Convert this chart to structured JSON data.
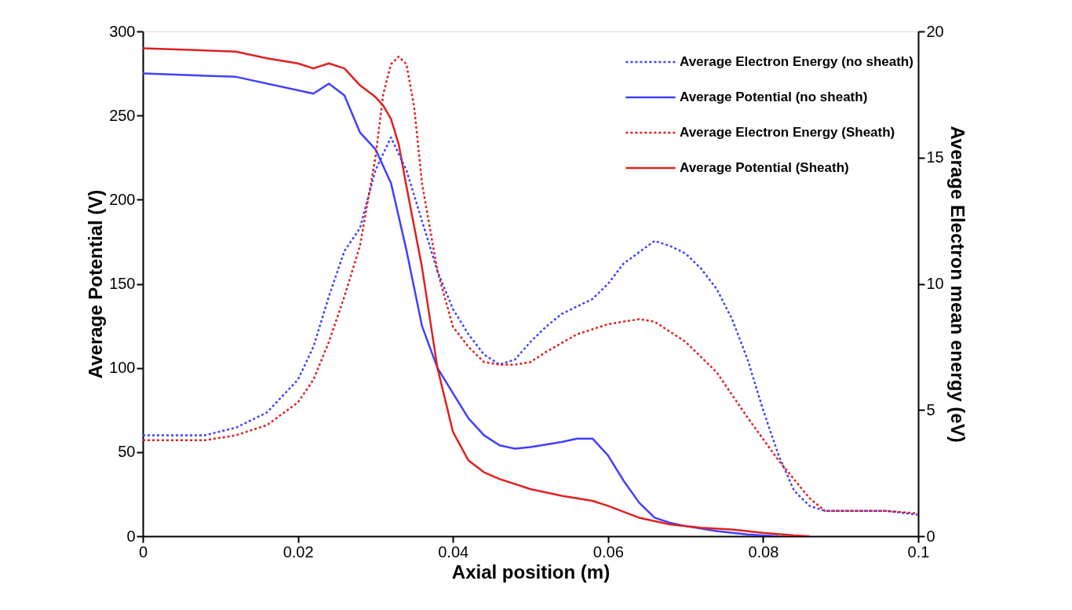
{
  "chart_data": {
    "type": "line",
    "xlabel": "Axial position (m)",
    "ylabel": "Average Potential (V)",
    "y2label": "Average Electron mean energy (eV)",
    "xlim": [
      0,
      0.1
    ],
    "xticks": [
      0,
      0.02,
      0.04,
      0.06,
      0.08,
      0.1
    ],
    "ylim": [
      0,
      300
    ],
    "yticks": [
      0,
      50,
      100,
      150,
      200,
      250,
      300
    ],
    "y2lim": [
      0,
      20
    ],
    "y2ticks": [
      0,
      5,
      10,
      15,
      20
    ],
    "grid": false,
    "legend": "top right",
    "marker": "none",
    "series": [
      {
        "name": "Average Electron Energy (no sheath)",
        "color": "#4040ff",
        "line_style": "dotted",
        "axis": "y2",
        "x": [
          0,
          0.008,
          0.012,
          0.016,
          0.02,
          0.022,
          0.024,
          0.026,
          0.028,
          0.03,
          0.032,
          0.034,
          0.036,
          0.038,
          0.04,
          0.042,
          0.044,
          0.046,
          0.048,
          0.05,
          0.052,
          0.054,
          0.058,
          0.06,
          0.062,
          0.066,
          0.068,
          0.07,
          0.072,
          0.074,
          0.076,
          0.078,
          0.08,
          0.082,
          0.084,
          0.086,
          0.088,
          0.096,
          0.1
        ],
        "values": [
          4.0,
          4.0,
          4.3,
          4.9,
          6.2,
          7.5,
          9.5,
          11.3,
          12.2,
          14.5,
          15.8,
          14.5,
          12.5,
          10.5,
          9.0,
          8.0,
          7.2,
          6.8,
          7.0,
          7.7,
          8.3,
          8.8,
          9.4,
          10.0,
          10.8,
          11.7,
          11.5,
          11.2,
          10.6,
          9.8,
          8.6,
          7.0,
          5.0,
          3.2,
          1.8,
          1.2,
          1.0,
          1.0,
          0.85
        ]
      },
      {
        "name": "Average Potential (no sheath)",
        "color": "#4040ff",
        "line_style": "solid",
        "x": [
          0,
          0.012,
          0.022,
          0.024,
          0.026,
          0.028,
          0.03,
          0.032,
          0.034,
          0.036,
          0.038,
          0.04,
          0.042,
          0.044,
          0.046,
          0.048,
          0.05,
          0.054,
          0.056,
          0.058,
          0.06,
          0.062,
          0.064,
          0.066,
          0.068,
          0.07,
          0.074,
          0.078,
          0.08,
          0.082
        ],
        "values": [
          275,
          273,
          263,
          269,
          262,
          240,
          230,
          210,
          170,
          125,
          100,
          85,
          70,
          60,
          54,
          52,
          53,
          56,
          58,
          58,
          48,
          33,
          20,
          11,
          8,
          6,
          3,
          1,
          0.5,
          0
        ]
      },
      {
        "name": "Average Electron Energy (Sheath)",
        "color": "#e02020",
        "line_style": "dotted",
        "axis": "y2",
        "x": [
          0,
          0.008,
          0.012,
          0.016,
          0.02,
          0.022,
          0.024,
          0.026,
          0.028,
          0.03,
          0.031,
          0.032,
          0.033,
          0.034,
          0.035,
          0.036,
          0.038,
          0.04,
          0.042,
          0.044,
          0.046,
          0.048,
          0.05,
          0.052,
          0.056,
          0.06,
          0.064,
          0.066,
          0.07,
          0.074,
          0.078,
          0.082,
          0.086,
          0.088,
          0.096,
          0.1
        ],
        "values": [
          3.8,
          3.8,
          4.0,
          4.4,
          5.3,
          6.2,
          7.7,
          9.5,
          11.5,
          15.0,
          17.5,
          18.7,
          19.0,
          18.7,
          17.0,
          14.0,
          10.5,
          8.3,
          7.5,
          6.9,
          6.8,
          6.8,
          6.9,
          7.3,
          8.0,
          8.4,
          8.6,
          8.5,
          7.7,
          6.5,
          4.7,
          3.0,
          1.5,
          1.0,
          1.0,
          0.9
        ]
      },
      {
        "name": "Average Potential (Sheath)",
        "color": "#e02020",
        "line_style": "solid",
        "x": [
          0,
          0.012,
          0.016,
          0.02,
          0.022,
          0.024,
          0.026,
          0.028,
          0.03,
          0.031,
          0.032,
          0.033,
          0.034,
          0.036,
          0.038,
          0.04,
          0.042,
          0.044,
          0.046,
          0.05,
          0.054,
          0.058,
          0.06,
          0.064,
          0.068,
          0.072,
          0.076,
          0.08,
          0.084,
          0.086
        ],
        "values": [
          290,
          288,
          284,
          281,
          278,
          281,
          278,
          268,
          261,
          256,
          248,
          233,
          208,
          160,
          100,
          62,
          45,
          38,
          34,
          28,
          24,
          21,
          18,
          11,
          7,
          5,
          4,
          2,
          0.5,
          0
        ]
      }
    ]
  }
}
